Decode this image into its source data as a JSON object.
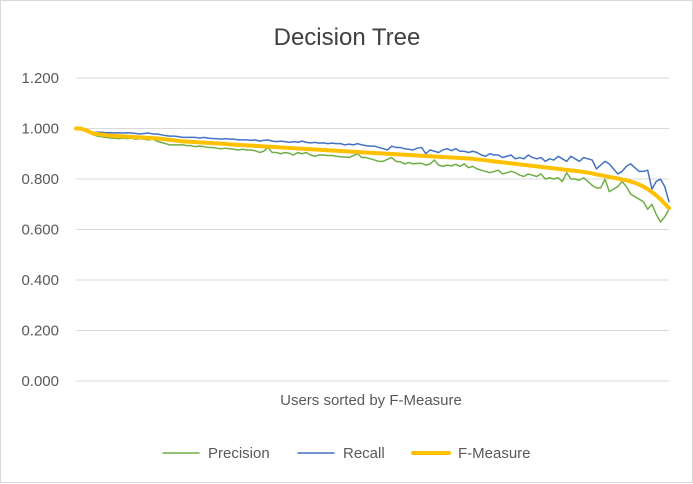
{
  "chart_data": {
    "type": "line",
    "title": "Decision Tree",
    "xlabel": "Users sorted by F-Measure",
    "ylabel": "",
    "ylim": [
      0,
      1.2
    ],
    "yticks": [
      0.0,
      0.2,
      0.4,
      0.6,
      0.8,
      1.0,
      1.2
    ],
    "ytick_labels": [
      "0.000",
      "0.200",
      "0.400",
      "0.600",
      "0.800",
      "1.000",
      "1.200"
    ],
    "grid": true,
    "legend_position": "bottom",
    "x": [
      1,
      2,
      3,
      4,
      5,
      6,
      7,
      8,
      9,
      10,
      11,
      12,
      13,
      14,
      15,
      16,
      17,
      18,
      19,
      20,
      21,
      22,
      23,
      24,
      25,
      26,
      27,
      28,
      29,
      30,
      31,
      32,
      33,
      34,
      35,
      36,
      37,
      38,
      39,
      40,
      41,
      42,
      43,
      44,
      45,
      46,
      47,
      48,
      49,
      50,
      51,
      52,
      53,
      54,
      55,
      56,
      57,
      58,
      59,
      60,
      61,
      62,
      63,
      64,
      65,
      66,
      67,
      68,
      69,
      70,
      71,
      72,
      73,
      74,
      75,
      76,
      77,
      78,
      79,
      80,
      81,
      82,
      83,
      84,
      85,
      86,
      87,
      88,
      89,
      90,
      91,
      92,
      93,
      94,
      95,
      96,
      97,
      98,
      99,
      100,
      101,
      102,
      103,
      104,
      105,
      106,
      107,
      108,
      109,
      110,
      111,
      112,
      113,
      114,
      115,
      116,
      117,
      118,
      119,
      120,
      121,
      122,
      123,
      124,
      125,
      126,
      127,
      128,
      129,
      130,
      131,
      132,
      133,
      134,
      135,
      136,
      137,
      138,
      139,
      140
    ],
    "series": [
      {
        "name": "Precision",
        "color": "#70ad47",
        "values": [
          1.0,
          1.0,
          0.995,
          0.985,
          0.975,
          0.97,
          0.968,
          0.965,
          0.963,
          0.962,
          0.96,
          0.962,
          0.96,
          0.962,
          0.958,
          0.96,
          0.958,
          0.955,
          0.958,
          0.95,
          0.945,
          0.94,
          0.935,
          0.935,
          0.935,
          0.935,
          0.932,
          0.932,
          0.928,
          0.93,
          0.928,
          0.925,
          0.925,
          0.922,
          0.92,
          0.922,
          0.92,
          0.918,
          0.915,
          0.918,
          0.915,
          0.915,
          0.912,
          0.905,
          0.91,
          0.925,
          0.905,
          0.905,
          0.9,
          0.905,
          0.902,
          0.895,
          0.905,
          0.9,
          0.905,
          0.895,
          0.89,
          0.895,
          0.895,
          0.893,
          0.893,
          0.89,
          0.888,
          0.887,
          0.885,
          0.893,
          0.9,
          0.885,
          0.885,
          0.88,
          0.875,
          0.87,
          0.87,
          0.878,
          0.885,
          0.87,
          0.868,
          0.86,
          0.865,
          0.86,
          0.862,
          0.862,
          0.855,
          0.86,
          0.875,
          0.855,
          0.85,
          0.855,
          0.852,
          0.858,
          0.85,
          0.86,
          0.845,
          0.85,
          0.84,
          0.835,
          0.83,
          0.825,
          0.83,
          0.835,
          0.82,
          0.825,
          0.83,
          0.825,
          0.815,
          0.81,
          0.82,
          0.815,
          0.81,
          0.82,
          0.8,
          0.805,
          0.8,
          0.805,
          0.79,
          0.825,
          0.8,
          0.8,
          0.795,
          0.805,
          0.79,
          0.775,
          0.765,
          0.765,
          0.8,
          0.75,
          0.76,
          0.77,
          0.79,
          0.77,
          0.74,
          0.73,
          0.72,
          0.71,
          0.68,
          0.7,
          0.66,
          0.63,
          0.65,
          0.68
        ]
      },
      {
        "name": "Recall",
        "color": "#4472c4",
        "values": [
          1.0,
          1.0,
          0.995,
          0.99,
          0.985,
          0.985,
          0.985,
          0.983,
          0.983,
          0.982,
          0.983,
          0.982,
          0.983,
          0.982,
          0.98,
          0.978,
          0.98,
          0.982,
          0.978,
          0.978,
          0.975,
          0.972,
          0.97,
          0.97,
          0.968,
          0.965,
          0.965,
          0.965,
          0.965,
          0.962,
          0.965,
          0.962,
          0.96,
          0.96,
          0.958,
          0.96,
          0.958,
          0.958,
          0.955,
          0.955,
          0.955,
          0.953,
          0.955,
          0.95,
          0.953,
          0.955,
          0.95,
          0.948,
          0.95,
          0.948,
          0.945,
          0.948,
          0.945,
          0.95,
          0.945,
          0.943,
          0.945,
          0.942,
          0.943,
          0.94,
          0.942,
          0.94,
          0.94,
          0.935,
          0.938,
          0.935,
          0.94,
          0.935,
          0.932,
          0.93,
          0.93,
          0.925,
          0.92,
          0.915,
          0.93,
          0.925,
          0.925,
          0.92,
          0.918,
          0.915,
          0.922,
          0.925,
          0.9,
          0.915,
          0.91,
          0.905,
          0.915,
          0.92,
          0.912,
          0.92,
          0.91,
          0.91,
          0.905,
          0.91,
          0.905,
          0.895,
          0.89,
          0.9,
          0.895,
          0.895,
          0.885,
          0.89,
          0.895,
          0.88,
          0.885,
          0.88,
          0.895,
          0.885,
          0.88,
          0.885,
          0.87,
          0.88,
          0.875,
          0.89,
          0.88,
          0.87,
          0.89,
          0.88,
          0.87,
          0.885,
          0.88,
          0.875,
          0.84,
          0.855,
          0.87,
          0.86,
          0.84,
          0.82,
          0.83,
          0.85,
          0.86,
          0.845,
          0.83,
          0.83,
          0.835,
          0.76,
          0.79,
          0.8,
          0.77,
          0.71
        ]
      },
      {
        "name": "F-Measure",
        "color": "#ffc000",
        "values": [
          1.0,
          1.0,
          0.995,
          0.988,
          0.98,
          0.978,
          0.976,
          0.974,
          0.972,
          0.971,
          0.97,
          0.969,
          0.968,
          0.967,
          0.966,
          0.965,
          0.964,
          0.963,
          0.962,
          0.961,
          0.959,
          0.957,
          0.955,
          0.953,
          0.951,
          0.949,
          0.948,
          0.947,
          0.946,
          0.945,
          0.944,
          0.943,
          0.942,
          0.941,
          0.94,
          0.939,
          0.937,
          0.936,
          0.935,
          0.934,
          0.933,
          0.932,
          0.931,
          0.93,
          0.929,
          0.928,
          0.927,
          0.926,
          0.925,
          0.924,
          0.923,
          0.922,
          0.921,
          0.92,
          0.919,
          0.918,
          0.917,
          0.916,
          0.915,
          0.914,
          0.913,
          0.912,
          0.911,
          0.91,
          0.909,
          0.908,
          0.907,
          0.906,
          0.905,
          0.904,
          0.903,
          0.902,
          0.901,
          0.9,
          0.899,
          0.898,
          0.897,
          0.896,
          0.895,
          0.894,
          0.893,
          0.892,
          0.891,
          0.89,
          0.889,
          0.888,
          0.887,
          0.886,
          0.885,
          0.884,
          0.883,
          0.882,
          0.881,
          0.88,
          0.878,
          0.876,
          0.874,
          0.872,
          0.87,
          0.868,
          0.866,
          0.864,
          0.862,
          0.86,
          0.858,
          0.856,
          0.854,
          0.852,
          0.85,
          0.848,
          0.846,
          0.844,
          0.842,
          0.84,
          0.838,
          0.836,
          0.834,
          0.832,
          0.83,
          0.828,
          0.825,
          0.822,
          0.818,
          0.815,
          0.812,
          0.808,
          0.805,
          0.802,
          0.798,
          0.795,
          0.79,
          0.785,
          0.778,
          0.77,
          0.76,
          0.748,
          0.735,
          0.72,
          0.702,
          0.685
        ]
      }
    ]
  }
}
